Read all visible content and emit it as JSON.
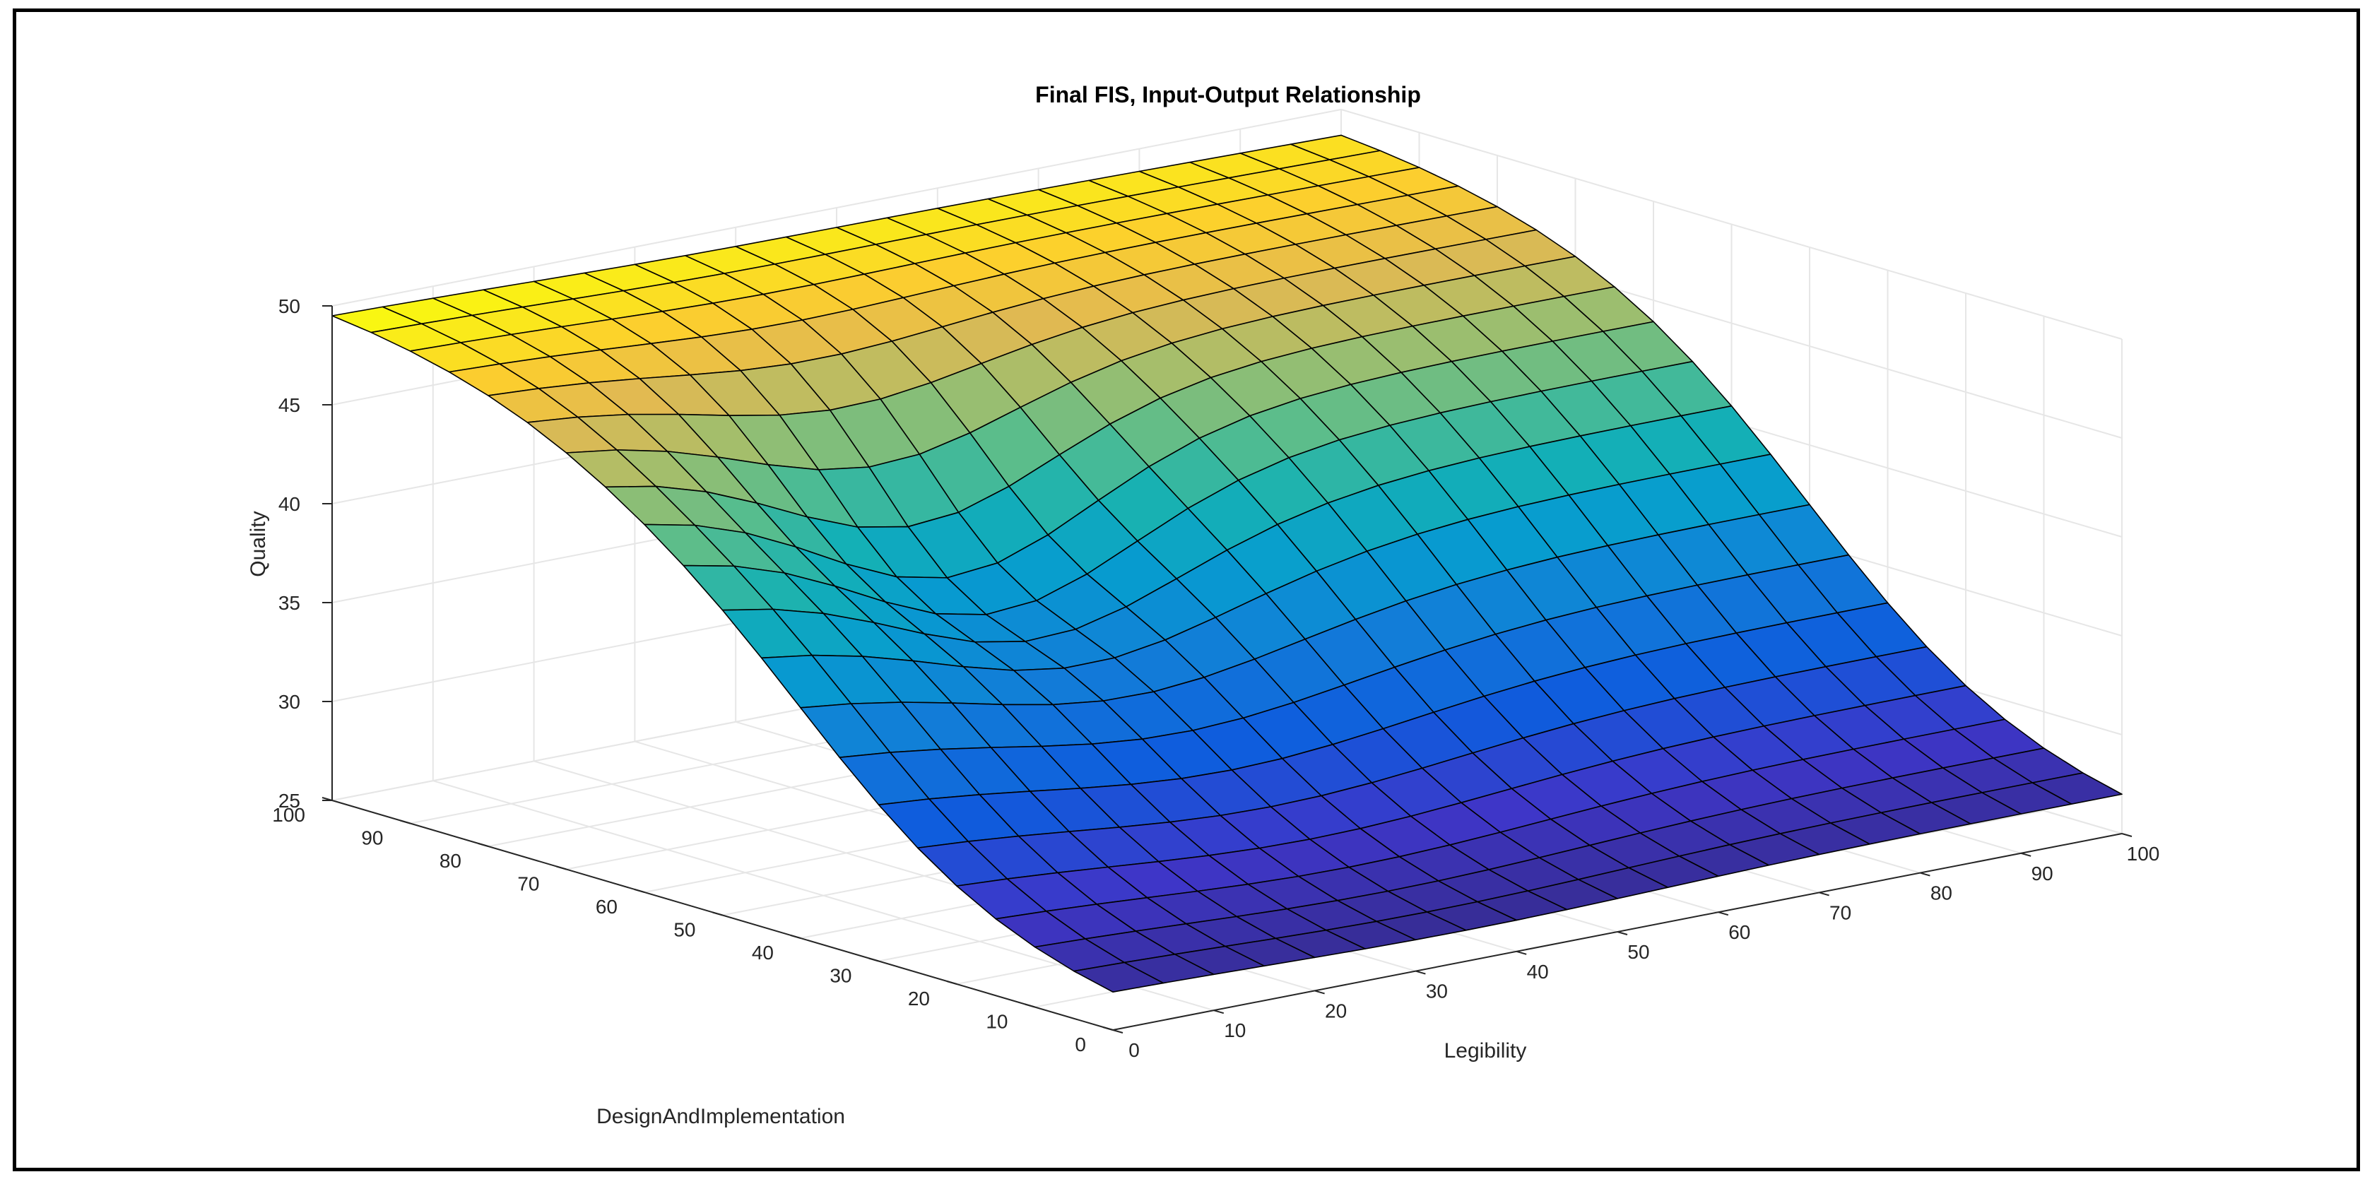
{
  "chart_data": {
    "type": "surface",
    "title": "Final FIS, Input-Output Relationship",
    "xlabel": "Legibility",
    "ylabel": "DesignAndImplementation",
    "zlabel": "Quality",
    "xlim": [
      0,
      100
    ],
    "ylim": [
      0,
      100
    ],
    "zlim": [
      25,
      50
    ],
    "xticks": [
      "0",
      "10",
      "20",
      "30",
      "40",
      "50",
      "60",
      "70",
      "80",
      "90",
      "100"
    ],
    "yticks": [
      "0",
      "10",
      "20",
      "30",
      "40",
      "50",
      "60",
      "70",
      "80",
      "90",
      "100"
    ],
    "zticks": [
      "25",
      "30",
      "35",
      "40",
      "45",
      "50"
    ],
    "grid": true,
    "colormap": "parula",
    "description": "Quality as a function of Legibility and DesignAndImplementation; low (~26) when both are low, rising steeply with DesignAndImplementation to ~48–50 at high values."
  }
}
